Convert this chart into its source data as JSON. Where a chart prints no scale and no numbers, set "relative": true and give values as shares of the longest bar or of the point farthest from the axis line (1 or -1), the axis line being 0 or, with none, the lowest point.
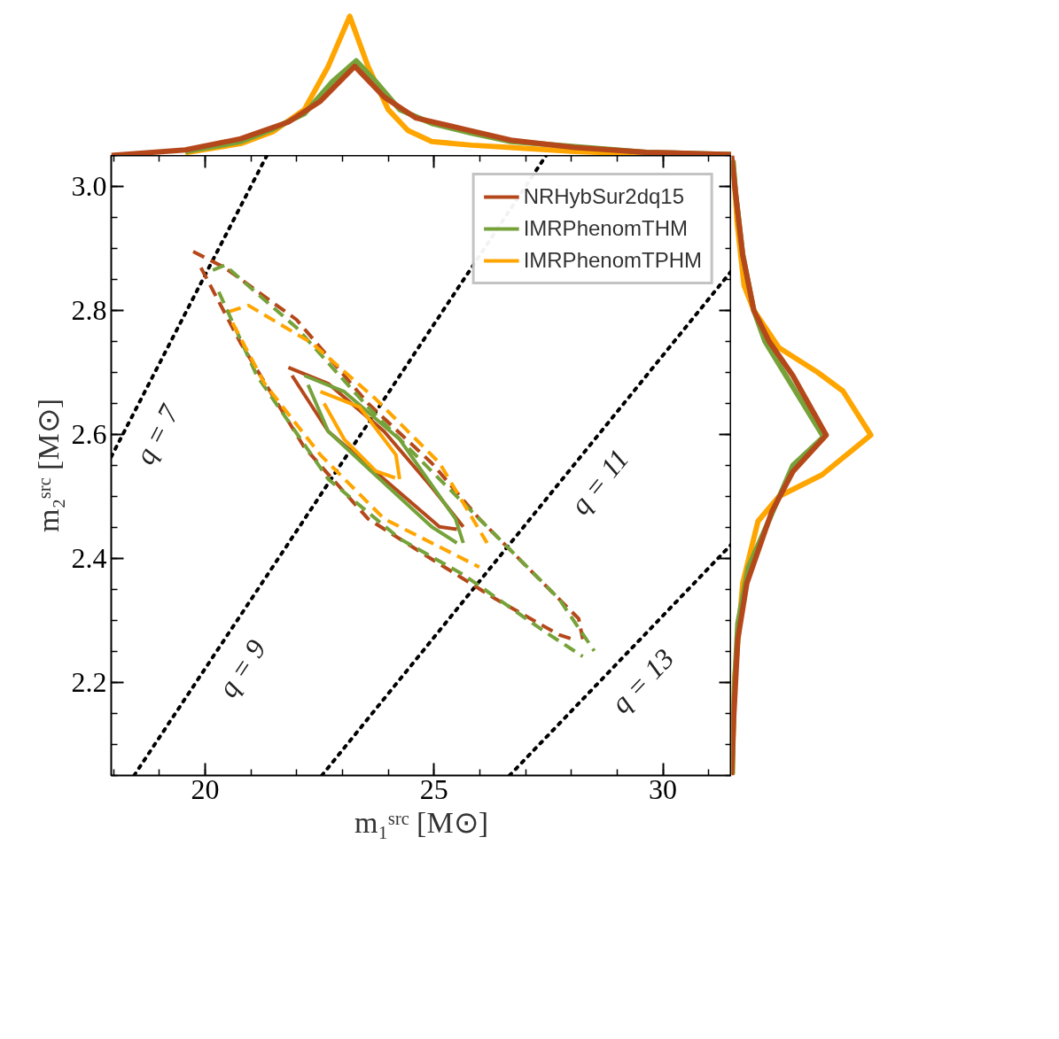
{
  "chart_data": [
    {
      "type": "line",
      "relative": true,
      "xlim": [
        17.95,
        31.5
      ],
      "tick_labels": false,
      "series": [
        {
          "color": "#ffa500",
          "x": [
            19.57,
            20.78,
            21.48,
            22.17,
            22.69,
            23.16,
            23.56,
            24.0,
            24.43,
            24.95,
            25.82,
            26.68,
            28.07,
            29.64,
            31.5
          ],
          "values": [
            0.02,
            0.085,
            0.17,
            0.33,
            0.64,
            1.0,
            0.64,
            0.33,
            0.18,
            0.1,
            0.074,
            0.057,
            0.028,
            0.011,
            0.006
          ]
        },
        {
          "color": "#76a23a",
          "x": [
            19.57,
            20.78,
            21.48,
            22.17,
            22.78,
            23.3,
            23.73,
            24.25,
            24.95,
            25.82,
            26.68,
            28.07,
            29.64,
            31.5
          ],
          "values": [
            0.028,
            0.1,
            0.19,
            0.3,
            0.53,
            0.68,
            0.53,
            0.33,
            0.23,
            0.16,
            0.1,
            0.063,
            0.023,
            0.006
          ]
        },
        {
          "color": "#b5481a",
          "x": [
            17.95,
            19.57,
            20.78,
            21.82,
            22.52,
            23.27,
            23.91,
            24.6,
            25.64,
            26.68,
            28.07,
            29.64,
            31.5
          ],
          "values": [
            0,
            0.04,
            0.12,
            0.24,
            0.39,
            0.64,
            0.42,
            0.27,
            0.19,
            0.11,
            0.057,
            0.023,
            0.006
          ]
        }
      ]
    },
    {
      "type": "line",
      "xlim": [
        17.95,
        31.5
      ],
      "ylim": [
        2.05,
        3.05
      ],
      "xticks": [
        20,
        25,
        30
      ],
      "yticks": [
        2.2,
        2.4,
        2.6,
        2.8,
        {
          "value": 3.0,
          "label": "3.0"
        }
      ],
      "xlabel": "m₁ˢʳᶜ [M⊙]",
      "ylabel": "m₂ˢʳᶜ [M⊙]",
      "legend": "top right",
      "grid": false,
      "annotations": [
        "q = 7",
        "q = 9",
        "q = 11",
        "q = 13"
      ],
      "series": [
        {
          "type": "line",
          "line_style": "dotted",
          "color": "#000000",
          "x": [
            17.95,
            21.35
          ],
          "values": [
            2.564,
            3.05
          ]
        },
        {
          "type": "line",
          "line_style": "dotted",
          "color": "#000000",
          "x": [
            18.45,
            27.45
          ],
          "values": [
            2.05,
            3.05
          ]
        },
        {
          "type": "line",
          "line_style": "dotted",
          "color": "#000000",
          "x": [
            22.55,
            31.5
          ],
          "values": [
            2.05,
            2.864
          ]
        },
        {
          "type": "line",
          "line_style": "dotted",
          "color": "#000000",
          "x": [
            26.65,
            31.5
          ],
          "values": [
            2.05,
            2.423
          ]
        },
        {
          "type": "line",
          "line_style": "solid",
          "name": "NRHybSur2dq15",
          "color": "#b5481a",
          "x": [
            21.82,
            22.69,
            23.91,
            24.95,
            25.64
          ],
          "values": [
            2.708,
            2.682,
            2.605,
            2.515,
            2.451
          ]
        },
        {
          "type": "line",
          "line_style": "solid",
          "name": "IMRPhenomTHM",
          "color": "#76a23a",
          "x": [
            22.17,
            23.04,
            24.25,
            25.47,
            25.64
          ],
          "values": [
            2.695,
            2.669,
            2.592,
            2.464,
            2.425
          ]
        },
        {
          "type": "line",
          "line_style": "solid",
          "name": "IMRPhenomTPHM",
          "color": "#ffa500",
          "x": [
            22.52,
            23.38,
            24.17,
            24.25
          ],
          "values": [
            2.669,
            2.644,
            2.567,
            2.528
          ]
        },
        {
          "type": "line",
          "line_style": "solid",
          "color": "#b5481a",
          "x": [
            21.9,
            22.69,
            23.91,
            25.12,
            25.5
          ],
          "values": [
            2.695,
            2.605,
            2.528,
            2.451,
            2.447
          ]
        },
        {
          "type": "line",
          "line_style": "solid",
          "color": "#76a23a",
          "x": [
            22.25,
            22.69,
            23.73,
            24.95,
            25.5
          ],
          "values": [
            2.68,
            2.605,
            2.534,
            2.451,
            2.425
          ]
        },
        {
          "type": "line",
          "line_style": "solid",
          "color": "#ffa500",
          "x": [
            22.6,
            23.04,
            23.73,
            24.15
          ],
          "values": [
            2.65,
            2.592,
            2.541,
            2.53
          ]
        },
        {
          "type": "line",
          "line_style": "dashed",
          "color": "#b5481a",
          "x": [
            19.74,
            20.43,
            22.0,
            23.56,
            24.95,
            25.99,
            27.2,
            28.16,
            28.25
          ],
          "values": [
            2.895,
            2.869,
            2.785,
            2.65,
            2.554,
            2.464,
            2.374,
            2.303,
            2.27
          ]
        },
        {
          "type": "line",
          "line_style": "dashed",
          "color": "#76a23a",
          "x": [
            20.17,
            20.43,
            22.0,
            23.56,
            25.12,
            26.34,
            27.73,
            28.5
          ],
          "values": [
            2.865,
            2.873,
            2.772,
            2.644,
            2.528,
            2.438,
            2.335,
            2.251
          ]
        },
        {
          "type": "line",
          "line_style": "dashed",
          "color": "#ffa500",
          "x": [
            20.52,
            20.95,
            22.34,
            23.73,
            25.12,
            26.16
          ],
          "values": [
            2.798,
            2.808,
            2.747,
            2.657,
            2.554,
            2.425
          ]
        },
        {
          "type": "line",
          "line_style": "dashed",
          "color": "#b5481a",
          "x": [
            19.91,
            20.78,
            22.17,
            23.56,
            24.95,
            26.34,
            27.73,
            28.1
          ],
          "values": [
            2.869,
            2.747,
            2.579,
            2.464,
            2.399,
            2.335,
            2.277,
            2.268
          ]
        },
        {
          "type": "line",
          "line_style": "dashed",
          "color": "#76a23a",
          "x": [
            20.3,
            21.13,
            22.69,
            24.25,
            25.64,
            27.38,
            28.25
          ],
          "values": [
            2.83,
            2.695,
            2.528,
            2.432,
            2.374,
            2.284,
            2.242
          ]
        },
        {
          "type": "line",
          "line_style": "dashed",
          "color": "#ffa500",
          "x": [
            20.6,
            21.3,
            22.52,
            23.91,
            25.3,
            25.99
          ],
          "values": [
            2.78,
            2.682,
            2.567,
            2.464,
            2.412,
            2.386
          ]
        }
      ]
    },
    {
      "type": "line",
      "relative": true,
      "orientation": "horizontal",
      "ylim": [
        2.05,
        3.05
      ],
      "tick_labels": false,
      "series": [
        {
          "color": "#ffa500",
          "x": [
            3.042,
            2.942,
            2.84,
            2.8,
            2.74,
            2.7,
            2.67,
            2.599,
            2.535,
            2.5,
            2.46,
            2.36,
            2.2,
            2.052
          ],
          "values": [
            0.01,
            0.04,
            0.09,
            0.16,
            0.34,
            0.62,
            0.8,
            1.0,
            0.65,
            0.34,
            0.19,
            0.08,
            0.02,
            0.005
          ]
        },
        {
          "color": "#76a23a",
          "x": [
            3.042,
            2.987,
            2.89,
            2.8,
            2.75,
            2.596,
            2.55,
            2.488,
            2.385,
            2.295,
            2.166,
            2.052
          ],
          "values": [
            0.01,
            0.03,
            0.08,
            0.16,
            0.24,
            0.66,
            0.44,
            0.32,
            0.12,
            0.045,
            0.015,
            0.005
          ]
        },
        {
          "color": "#b5481a",
          "x": [
            3.05,
            2.987,
            2.89,
            2.8,
            2.75,
            2.695,
            2.599,
            2.54,
            2.476,
            2.36,
            2.27,
            2.141,
            2.05
          ],
          "values": [
            0,
            0.03,
            0.08,
            0.16,
            0.27,
            0.44,
            0.68,
            0.44,
            0.29,
            0.11,
            0.045,
            0.015,
            0
          ]
        }
      ]
    }
  ]
}
